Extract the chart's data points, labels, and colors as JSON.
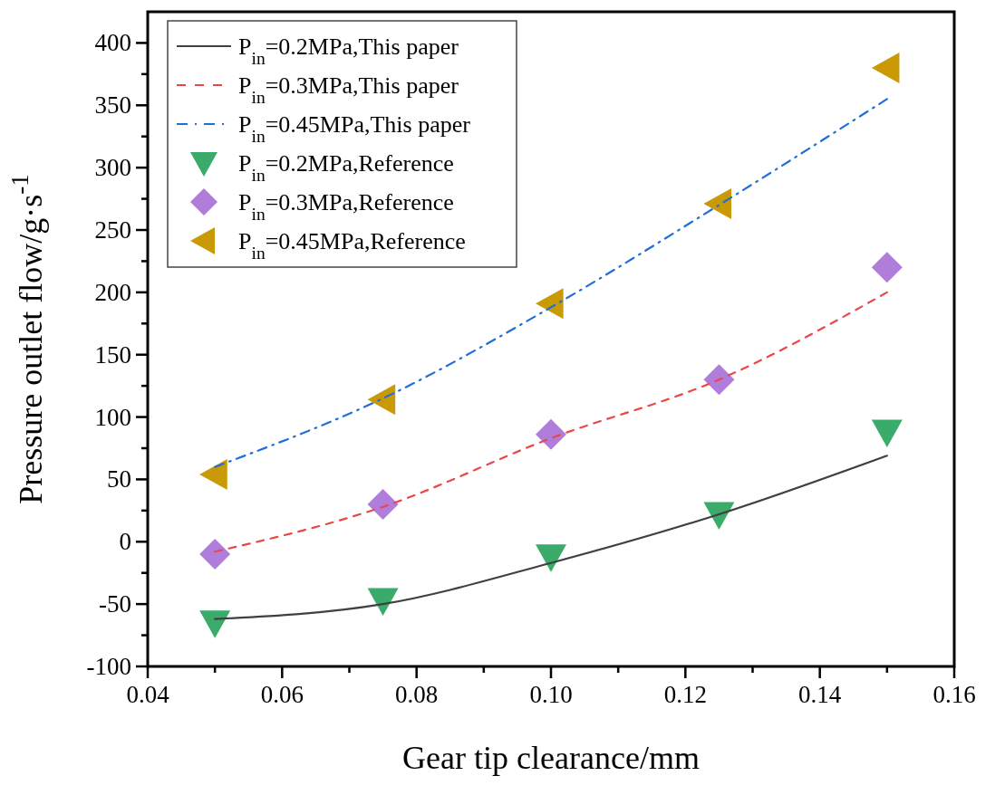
{
  "chart_data": {
    "type": "line",
    "xlabel": "Gear tip clearance/mm",
    "ylabel": "Pressure outlet flow/g·s$^{-1}$",
    "xlim": [
      0.04,
      0.16
    ],
    "xticks": [
      {
        "value": 0.04,
        "label": "0.04"
      },
      {
        "value": 0.05,
        "label": null
      },
      {
        "value": 0.06,
        "label": "0.06"
      },
      {
        "value": 0.07,
        "label": null
      },
      {
        "value": 0.08,
        "label": "0.08"
      },
      {
        "value": 0.09,
        "label": null
      },
      {
        "value": 0.1,
        "label": "0.10"
      },
      {
        "value": 0.11,
        "label": null
      },
      {
        "value": 0.12,
        "label": "0.12"
      },
      {
        "value": 0.13,
        "label": null
      },
      {
        "value": 0.14,
        "label": "0.14"
      },
      {
        "value": 0.15,
        "label": null
      },
      {
        "value": 0.16,
        "label": "0.16"
      }
    ],
    "ylim": [
      -100,
      425
    ],
    "yticks": [
      -100,
      {
        "value": -75,
        "label": null
      },
      -50,
      {
        "value": -25,
        "label": null
      },
      0,
      {
        "value": 25,
        "label": null
      },
      50,
      {
        "value": 75,
        "label": null
      },
      100,
      {
        "value": 125,
        "label": null
      },
      150,
      {
        "value": 175,
        "label": null
      },
      200,
      {
        "value": 225,
        "label": null
      },
      250,
      {
        "value": 275,
        "label": null
      },
      300,
      {
        "value": 325,
        "label": null
      },
      350,
      {
        "value": 375,
        "label": null
      },
      400
    ],
    "x": [
      0.05,
      0.075,
      0.1,
      0.125,
      0.15
    ],
    "legend": "top left",
    "grid": false,
    "series": [
      {
        "name": "P$_{in}$=0.2MPa,This paper",
        "color": "#404040",
        "line_style": "solid",
        "marker": "none",
        "values": [
          -62,
          -50,
          -17,
          22,
          69
        ]
      },
      {
        "name": "P$_{in}$=0.3MPa,This paper",
        "color": "#e84848",
        "line_style": "dashed",
        "marker": "none",
        "values": [
          -8,
          28,
          83,
          130,
          200
        ]
      },
      {
        "name": "P$_{in}$=0.45MPa,This paper",
        "color": "#1f6fd6",
        "line_style": "dashdot",
        "marker": "none",
        "values": [
          60,
          115,
          188,
          270,
          355
        ]
      },
      {
        "name": "P$_{in}$=0.2MPa,Reference",
        "type": "scatter",
        "color": "#3aab6a",
        "marker": "triangle-down",
        "values": [
          -65,
          -47,
          -12,
          22,
          88
        ]
      },
      {
        "name": "P$_{in}$=0.3MPa,Reference",
        "type": "scatter",
        "color": "#b07ddb",
        "marker": "diamond",
        "values": [
          -10,
          30,
          86,
          130,
          220
        ]
      },
      {
        "name": "P$_{in}$=0.45MPa,Reference",
        "type": "scatter",
        "color": "#c99a06",
        "marker": "triangle-left",
        "values": [
          54,
          114,
          191,
          271,
          380
        ]
      }
    ]
  }
}
